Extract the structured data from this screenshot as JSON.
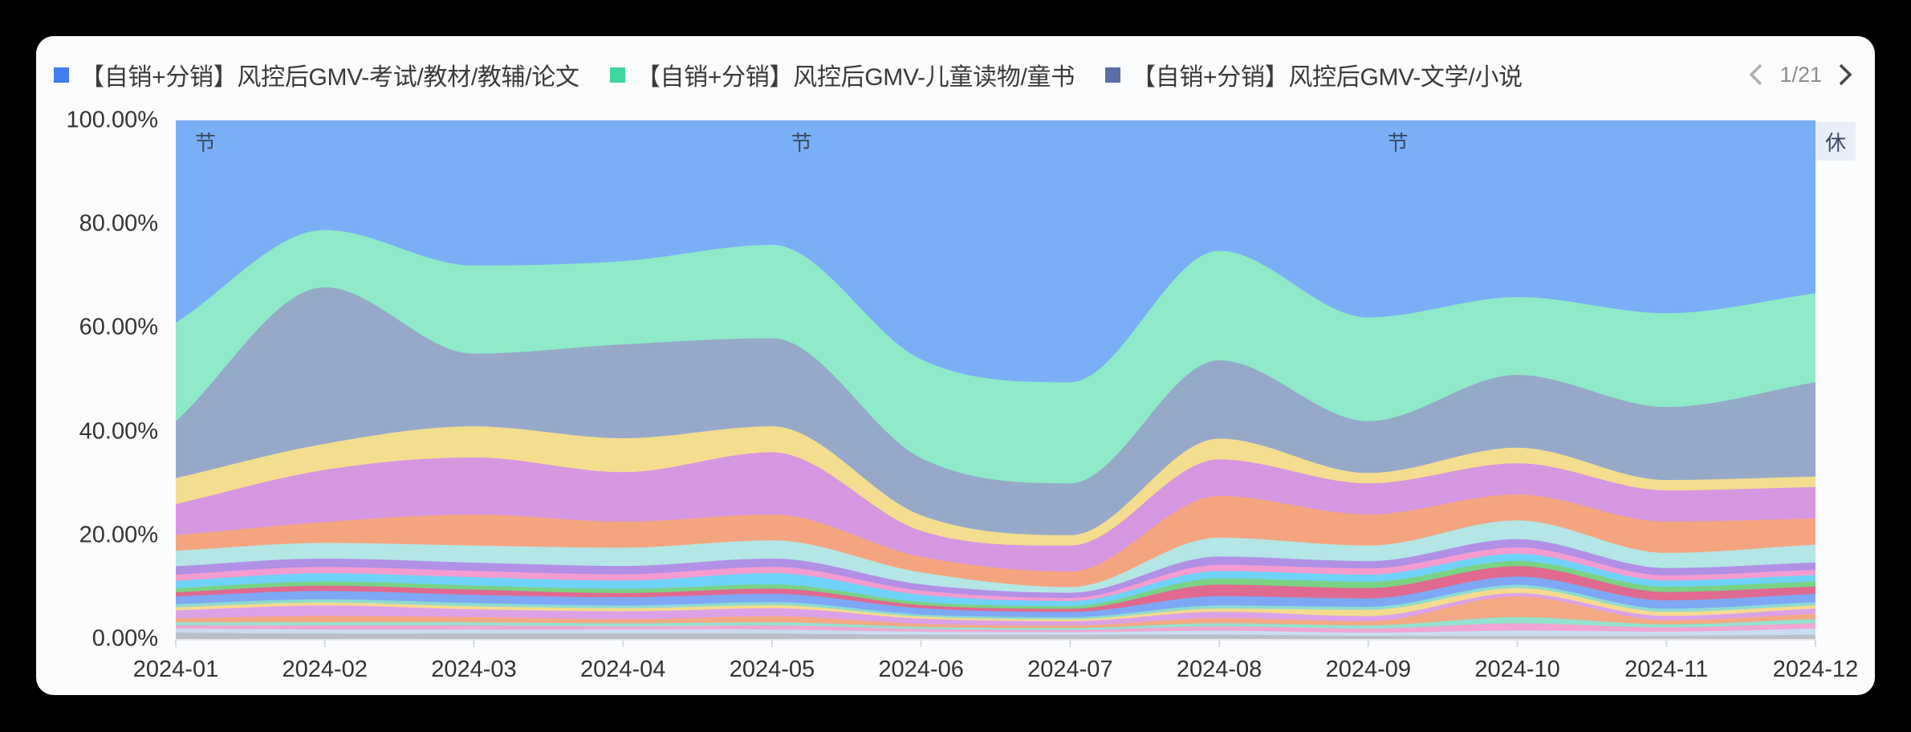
{
  "legend": {
    "items": [
      {
        "label": "【自销+分销】风控后GMV-考试/教材/教辅/论文",
        "color": "#3f7ef0"
      },
      {
        "label": "【自销+分销】风控后GMV-儿童读物/童书",
        "color": "#3fd6a0"
      },
      {
        "label": "【自销+分销】风控后GMV-文学/小说",
        "color": "#5a6fa6"
      }
    ],
    "pager": {
      "text": "1/21",
      "prev_icon": "chevron-left-icon",
      "next_icon": "chevron-right-icon"
    }
  },
  "markers": [
    {
      "text": "节",
      "month_index": 0.15
    },
    {
      "text": "节",
      "month_index": 4.15
    },
    {
      "text": "节",
      "month_index": 8.15
    }
  ],
  "rest_marker": {
    "text": "休"
  },
  "chart_data": {
    "type": "area",
    "stacked": true,
    "normalized": true,
    "smooth": true,
    "title": "",
    "xlabel": "",
    "ylabel": "",
    "ylim": [
      0,
      100
    ],
    "y_ticks": [
      "0.00%",
      "20.00%",
      "40.00%",
      "60.00%",
      "80.00%",
      "100.00%"
    ],
    "categories": [
      "2024-01",
      "2024-02",
      "2024-03",
      "2024-04",
      "2024-05",
      "2024-06",
      "2024-07",
      "2024-08",
      "2024-09",
      "2024-10",
      "2024-11",
      "2024-12"
    ],
    "legend_position": "top",
    "legend_page": "1/21",
    "series_bottom_to_top": [
      {
        "name": "other-gray",
        "color": "#b9bec8",
        "values": [
          1.2,
          1.0,
          1.0,
          1.0,
          1.0,
          0.8,
          0.8,
          0.8,
          0.6,
          0.6,
          0.6,
          0.8
        ]
      },
      {
        "name": "other-lightblue",
        "color": "#c9dcf2",
        "values": [
          0.8,
          0.8,
          0.8,
          0.8,
          0.8,
          0.6,
          0.5,
          0.8,
          0.6,
          1.0,
          0.8,
          1.2
        ]
      },
      {
        "name": "other-pink2",
        "color": "#f2a6d6",
        "values": [
          0.6,
          0.8,
          0.8,
          0.6,
          0.8,
          0.5,
          0.4,
          0.8,
          0.8,
          1.4,
          0.8,
          1.0
        ]
      },
      {
        "name": "other-teal2",
        "color": "#93e3cf",
        "values": [
          0.6,
          0.6,
          0.6,
          0.6,
          0.6,
          0.4,
          0.4,
          0.6,
          0.6,
          1.2,
          0.6,
          0.8
        ]
      },
      {
        "name": "other-orange2",
        "color": "#f4a985",
        "values": [
          0.8,
          1.2,
          1.0,
          0.8,
          1.2,
          0.6,
          0.5,
          1.0,
          0.8,
          4.0,
          0.8,
          1.0
        ]
      },
      {
        "name": "other-orchid",
        "color": "#dca2e8",
        "values": [
          1.5,
          2.0,
          1.5,
          1.5,
          1.5,
          1.0,
          0.8,
          1.2,
          1.0,
          0.6,
          0.8,
          1.0
        ]
      },
      {
        "name": "other-yellow",
        "color": "#f4db8e",
        "values": [
          0.6,
          0.6,
          0.6,
          0.6,
          0.6,
          0.4,
          0.4,
          0.6,
          1.2,
          1.0,
          0.8,
          0.6
        ]
      },
      {
        "name": "other-teal",
        "color": "#8fdbd2",
        "values": [
          0.6,
          0.6,
          0.6,
          0.5,
          0.6,
          0.4,
          0.4,
          0.6,
          0.6,
          0.6,
          0.6,
          0.6
        ]
      },
      {
        "name": "other-blue",
        "color": "#7ea8f5",
        "values": [
          1.5,
          1.6,
          1.6,
          1.6,
          1.6,
          1.2,
          1.0,
          1.8,
          1.6,
          1.6,
          1.6,
          1.6
        ]
      },
      {
        "name": "other-rose",
        "color": "#e0698f",
        "values": [
          0.8,
          1.0,
          1.0,
          0.8,
          1.0,
          0.6,
          0.6,
          2.2,
          2.0,
          2.0,
          1.6,
          1.4
        ]
      },
      {
        "name": "other-green",
        "color": "#79d383",
        "values": [
          0.8,
          0.8,
          0.8,
          0.8,
          0.8,
          0.6,
          0.5,
          1.2,
          1.2,
          1.0,
          1.0,
          1.0
        ]
      },
      {
        "name": "other-sky",
        "color": "#6fd2f8",
        "values": [
          1.4,
          1.6,
          1.6,
          1.6,
          2.2,
          1.4,
          1.0,
          1.4,
          1.4,
          1.4,
          1.2,
          1.2
        ]
      },
      {
        "name": "other-pink",
        "color": "#f59ccf",
        "values": [
          1.2,
          1.2,
          1.2,
          1.2,
          1.2,
          0.8,
          0.6,
          1.2,
          1.2,
          1.2,
          1.0,
          1.0
        ]
      },
      {
        "name": "other-lavender",
        "color": "#b190e6",
        "values": [
          1.6,
          1.6,
          1.6,
          1.6,
          1.6,
          1.2,
          1.0,
          1.6,
          1.4,
          1.6,
          1.4,
          1.4
        ]
      },
      {
        "name": "other-palecyan",
        "color": "#b4e6e6",
        "values": [
          3.0,
          3.0,
          3.3,
          3.5,
          3.5,
          2.3,
          1.1,
          3.6,
          3.0,
          3.6,
          2.9,
          3.4
        ]
      },
      {
        "name": "other-orange",
        "color": "#f4a57f",
        "values": [
          3,
          4,
          6,
          5,
          5,
          3,
          3,
          8,
          6,
          5,
          6,
          5
        ]
      },
      {
        "name": "other-orchid-main",
        "color": "#d597e0",
        "values": [
          6,
          10,
          11,
          9.5,
          12,
          5,
          5,
          7,
          6,
          6,
          6,
          6
        ]
      },
      {
        "name": "other-yellow-main",
        "color": "#f3de8f",
        "values": [
          5,
          5,
          6,
          6.5,
          5,
          3,
          2,
          4,
          2,
          3,
          2,
          2
        ]
      },
      {
        "name": "【自销+分销】风控后GMV-文学/小说",
        "color": "#96a9c9",
        "values": [
          11,
          30,
          14,
          18,
          17,
          11,
          10,
          15,
          10,
          14,
          14,
          18
        ]
      },
      {
        "name": "【自销+分销】风控后GMV-儿童读物/童书",
        "color": "#8eeac8",
        "values": [
          19,
          11,
          17,
          16,
          18,
          19,
          19.5,
          21,
          20,
          15,
          18,
          17
        ]
      },
      {
        "name": "【自销+分销】风控后GMV-考试/教材/教辅/论文",
        "color": "#7aaef7",
        "values": [
          39,
          21,
          28,
          27,
          24,
          46,
          50.5,
          25,
          38,
          34,
          37,
          33
        ]
      }
    ]
  }
}
